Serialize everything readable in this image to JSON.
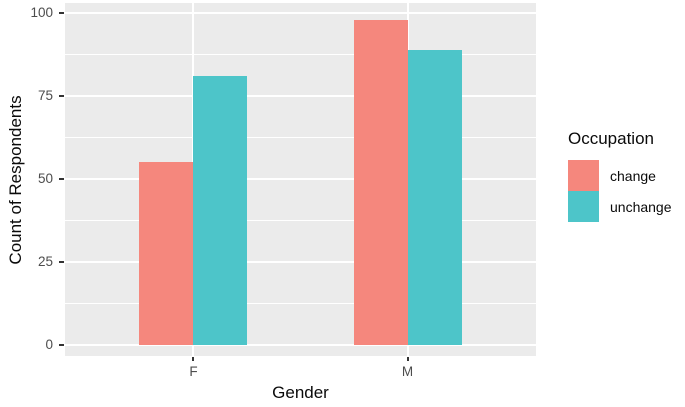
{
  "chart_data": {
    "type": "bar",
    "grouped": "dodged",
    "title": "",
    "xlabel": "Gender",
    "ylabel": "Count of Respondents",
    "categories": [
      "F",
      "M"
    ],
    "series": [
      {
        "name": "change",
        "color": "#F5877D",
        "values": [
          55,
          98
        ]
      },
      {
        "name": "unchange",
        "color": "#4DC5C9",
        "values": [
          81,
          89
        ]
      }
    ],
    "ylim": [
      0,
      100
    ],
    "yticks": [
      0,
      25,
      50,
      75,
      100
    ],
    "grid": "white major and minor horizontal lines, white vertical line at each category, on gray panel",
    "legend_title": "Occupation",
    "legend_position": "right",
    "colors": {
      "panel_background": "#EBEBEB",
      "gridline": "#FFFFFF",
      "tick_label": "#4D4D4D",
      "tick_mark": "#333333",
      "axis_title": "#0A0A0A",
      "figure_background": "#FFFFFF"
    }
  }
}
